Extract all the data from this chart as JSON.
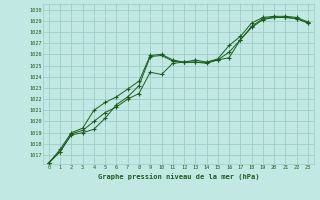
{
  "title": "Graphe pression niveau de la mer (hPa)",
  "bg_color": "#c2e8e4",
  "grid_color": "#9ececa",
  "line_color": "#1a5e1a",
  "marker_color": "#1a5e1a",
  "xlim": [
    -0.5,
    23.5
  ],
  "ylim": [
    1016.2,
    1030.5
  ],
  "yticks": [
    1017,
    1018,
    1019,
    1020,
    1021,
    1022,
    1023,
    1024,
    1025,
    1026,
    1027,
    1028,
    1029,
    1030
  ],
  "xticks": [
    0,
    1,
    2,
    3,
    4,
    5,
    6,
    7,
    8,
    9,
    10,
    11,
    12,
    13,
    14,
    15,
    16,
    17,
    18,
    19,
    20,
    21,
    22,
    23
  ],
  "series": [
    [
      1016.3,
      1017.3,
      1018.8,
      1019.0,
      1019.3,
      1020.3,
      1021.5,
      1022.2,
      1023.2,
      1025.8,
      1025.9,
      1025.4,
      1025.3,
      1025.3,
      1025.3,
      1025.5,
      1025.7,
      1027.3,
      1028.4,
      1029.1,
      1029.3,
      1029.3,
      1029.2,
      1028.8
    ],
    [
      1016.3,
      1017.3,
      1018.9,
      1019.2,
      1020.0,
      1020.8,
      1021.3,
      1022.0,
      1022.5,
      1024.4,
      1024.2,
      1025.2,
      1025.3,
      1025.3,
      1025.2,
      1025.5,
      1026.2,
      1027.3,
      1028.5,
      1029.2,
      1029.3,
      1029.3,
      1029.2,
      1028.8
    ],
    [
      1016.3,
      1017.5,
      1019.0,
      1019.4,
      1021.0,
      1021.7,
      1022.2,
      1022.9,
      1023.6,
      1025.9,
      1026.0,
      1025.5,
      1025.3,
      1025.5,
      1025.3,
      1025.6,
      1026.8,
      1027.6,
      1028.8,
      1029.3,
      1029.4,
      1029.4,
      1029.3,
      1028.9
    ]
  ]
}
